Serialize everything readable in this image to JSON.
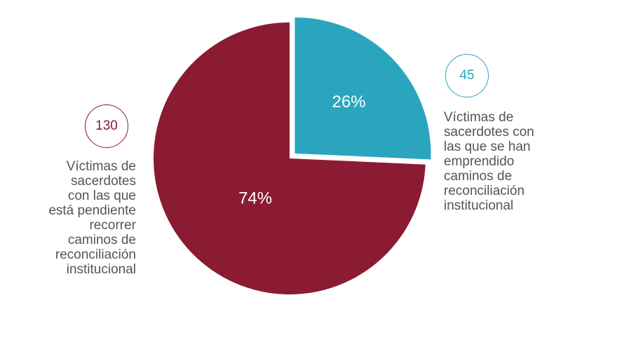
{
  "chart_data": {
    "type": "pie",
    "slices": [
      {
        "value": 130,
        "percent_label": "74%",
        "count_label": "130",
        "description": "Víctimas de\nsacerdotes\ncon las que\nestá pendiente\nrecorrer\ncaminos de\nreconciliación\ninstitucional",
        "color": "#8b1a33",
        "exploded": false
      },
      {
        "value": 45,
        "percent_label": "26%",
        "count_label": "45",
        "description": "Víctimas de\nsacerdotes con\nlas que se han\nemprendido\ncaminos de\nreconciliación\ninstitucional",
        "color": "#2aa5bd",
        "exploded": true
      }
    ]
  }
}
